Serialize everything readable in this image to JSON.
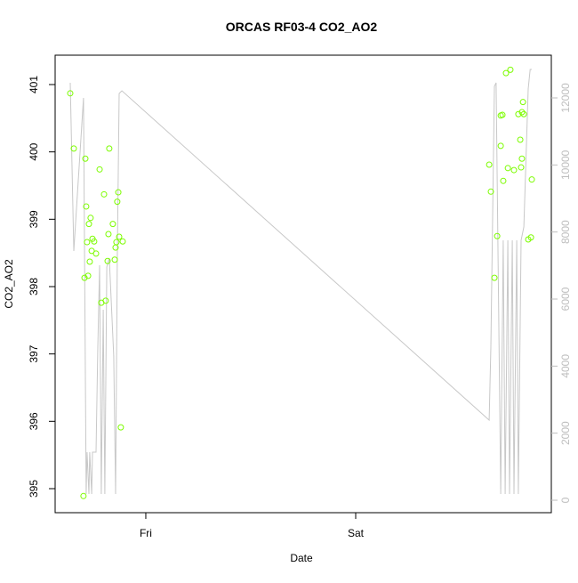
{
  "chart_data": {
    "type": "scatter",
    "title": "ORCAS RF03-4 CO2_AO2",
    "x_label": "Date",
    "y_label": "CO2_AO2",
    "xlim": [
      -0.432,
      1.932
    ],
    "xticks": [
      {
        "value": 0,
        "label": "Fri"
      },
      {
        "value": 1,
        "label": "Sat"
      }
    ],
    "ylim": [
      394.643,
      401.436
    ],
    "yticks": [
      395,
      396,
      397,
      398,
      399,
      400,
      401
    ],
    "y2lim": [
      -372,
      13274
    ],
    "y2ticks": [
      0,
      2000,
      4000,
      6000,
      8000,
      10000,
      12000
    ],
    "y2color": "#bebebe",
    "series": [
      {
        "type": "line",
        "axis": "y2",
        "color": "#c8c8c8",
        "x": [
          -0.36,
          -0.343,
          -0.297,
          -0.284,
          -0.28,
          -0.271,
          -0.267,
          -0.258,
          -0.254,
          -0.246,
          -0.237,
          -0.229,
          -0.22,
          -0.212,
          -0.203,
          -0.195,
          -0.186,
          -0.174,
          -0.153,
          -0.144,
          -0.136,
          -0.127,
          -0.114,
          1.636,
          1.644,
          1.661,
          1.669,
          1.691,
          1.703,
          1.712,
          1.725,
          1.733,
          1.746,
          1.754,
          1.767,
          1.775,
          1.788,
          1.801,
          1.822,
          1.831,
          1.839
        ],
        "values": [
          12450,
          7433,
          12000,
          186,
          1434,
          186,
          1434,
          186,
          1434,
          1434,
          1434,
          4433,
          7008,
          186,
          5681,
          186,
          6955,
          7221,
          4301,
          186,
          7221,
          12132,
          12211,
          2389,
          4566,
          12344,
          12450,
          186,
          7752,
          186,
          7752,
          186,
          7752,
          186,
          7752,
          186,
          7752,
          8150,
          12265,
          12849,
          12849
        ]
      },
      {
        "type": "scatter",
        "color": "#7cfc00",
        "x": [
          -0.36,
          -0.343,
          -0.288,
          -0.284,
          -0.28,
          -0.271,
          -0.267,
          -0.263,
          -0.258,
          -0.254,
          -0.246,
          -0.237,
          -0.292,
          -0.275,
          -0.22,
          -0.212,
          -0.199,
          -0.191,
          -0.182,
          -0.178,
          -0.174,
          -0.157,
          -0.148,
          -0.144,
          -0.14,
          -0.136,
          -0.131,
          -0.127,
          -0.119,
          -0.11,
          -0.297,
          1.636,
          1.644,
          1.661,
          1.674,
          1.691,
          1.691,
          1.699,
          1.703,
          1.716,
          1.725,
          1.737,
          1.754,
          1.775,
          1.784,
          1.788,
          1.792,
          1.792,
          1.801,
          1.797,
          1.822,
          1.835,
          1.839
        ],
        "values": [
          400.87,
          400.05,
          399.9,
          399.19,
          398.66,
          398.93,
          398.37,
          399.02,
          398.53,
          398.71,
          398.67,
          398.49,
          398.13,
          398.16,
          399.74,
          397.76,
          399.37,
          397.79,
          398.38,
          398.78,
          400.05,
          398.93,
          398.4,
          398.58,
          398.66,
          399.26,
          399.4,
          398.74,
          395.91,
          398.67,
          394.89,
          399.81,
          399.41,
          398.13,
          398.75,
          400.54,
          400.09,
          400.55,
          399.57,
          401.17,
          399.76,
          401.22,
          399.73,
          400.56,
          400.18,
          399.77,
          399.9,
          400.59,
          400.56,
          400.74,
          398.7,
          398.73,
          399.59
        ]
      }
    ]
  }
}
